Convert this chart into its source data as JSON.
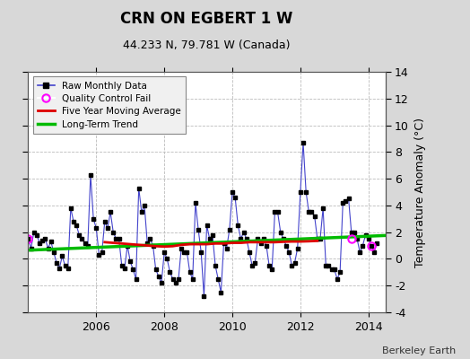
{
  "title": "CRN ON EGBERT 1 W",
  "subtitle": "44.233 N, 79.781 W (Canada)",
  "ylabel": "Temperature Anomaly (°C)",
  "credit": "Berkeley Earth",
  "ylim": [
    -4,
    14
  ],
  "yticks": [
    -4,
    -2,
    0,
    2,
    4,
    6,
    8,
    10,
    12,
    14
  ],
  "bg_color": "#d8d8d8",
  "plot_bg_color": "#ffffff",
  "raw_color": "#4444cc",
  "marker_color": "#000000",
  "qc_color": "#ff00ff",
  "moving_avg_color": "#dd0000",
  "trend_color": "#00bb00",
  "raw_data": {
    "x": [
      2004.0,
      2004.083,
      2004.167,
      2004.25,
      2004.333,
      2004.417,
      2004.5,
      2004.583,
      2004.667,
      2004.75,
      2004.833,
      2004.917,
      2005.0,
      2005.083,
      2005.167,
      2005.25,
      2005.333,
      2005.417,
      2005.5,
      2005.583,
      2005.667,
      2005.75,
      2005.833,
      2005.917,
      2006.0,
      2006.083,
      2006.167,
      2006.25,
      2006.333,
      2006.417,
      2006.5,
      2006.583,
      2006.667,
      2006.75,
      2006.833,
      2006.917,
      2007.0,
      2007.083,
      2007.167,
      2007.25,
      2007.333,
      2007.417,
      2007.5,
      2007.583,
      2007.667,
      2007.75,
      2007.833,
      2007.917,
      2008.0,
      2008.083,
      2008.167,
      2008.25,
      2008.333,
      2008.417,
      2008.5,
      2008.583,
      2008.667,
      2008.75,
      2008.833,
      2008.917,
      2009.0,
      2009.083,
      2009.167,
      2009.25,
      2009.333,
      2009.417,
      2009.5,
      2009.583,
      2009.667,
      2009.75,
      2009.833,
      2009.917,
      2010.0,
      2010.083,
      2010.167,
      2010.25,
      2010.333,
      2010.417,
      2010.5,
      2010.583,
      2010.667,
      2010.75,
      2010.833,
      2010.917,
      2011.0,
      2011.083,
      2011.167,
      2011.25,
      2011.333,
      2011.417,
      2011.5,
      2011.583,
      2011.667,
      2011.75,
      2011.833,
      2011.917,
      2012.0,
      2012.083,
      2012.167,
      2012.25,
      2012.333,
      2012.417,
      2012.5,
      2012.583,
      2012.667,
      2012.75,
      2012.833,
      2012.917,
      2013.0,
      2013.083,
      2013.167,
      2013.25,
      2013.333,
      2013.417,
      2013.5,
      2013.583,
      2013.667,
      2013.75,
      2013.833,
      2013.917,
      2014.0,
      2014.083,
      2014.167,
      2014.25
    ],
    "y": [
      1.5,
      0.8,
      2.0,
      1.8,
      1.2,
      1.4,
      1.5,
      0.8,
      1.3,
      0.5,
      -0.3,
      -0.7,
      0.2,
      -0.5,
      -0.7,
      3.8,
      2.8,
      2.5,
      1.8,
      1.5,
      1.2,
      1.0,
      6.3,
      3.0,
      2.3,
      0.3,
      0.5,
      2.8,
      2.3,
      3.5,
      2.0,
      1.5,
      1.5,
      -0.5,
      -0.7,
      1.0,
      -0.2,
      -0.8,
      -1.5,
      5.3,
      3.5,
      4.0,
      1.2,
      1.5,
      1.0,
      -0.8,
      -1.3,
      -1.8,
      0.5,
      0.0,
      -1.0,
      -1.5,
      -1.8,
      -1.5,
      0.8,
      0.5,
      0.5,
      -1.0,
      -1.5,
      4.2,
      2.2,
      0.5,
      -2.8,
      2.5,
      1.5,
      1.8,
      -0.5,
      -1.5,
      -2.5,
      1.2,
      0.8,
      2.2,
      5.0,
      4.6,
      2.5,
      1.5,
      2.0,
      1.5,
      0.5,
      -0.5,
      -0.3,
      1.5,
      1.2,
      1.5,
      1.0,
      -0.5,
      -0.8,
      3.5,
      3.5,
      2.0,
      1.5,
      1.0,
      0.5,
      -0.5,
      -0.3,
      0.8,
      5.0,
      8.7,
      5.0,
      3.5,
      3.5,
      3.2,
      1.5,
      1.5,
      3.8,
      -0.5,
      -0.5,
      -0.8,
      -0.8,
      -1.5,
      -1.0,
      4.2,
      4.3,
      4.5,
      2.0,
      2.0,
      1.5,
      0.5,
      1.0,
      1.8,
      1.5,
      1.0,
      0.5,
      1.2
    ]
  },
  "qc_fail_points": [
    [
      2004.0,
      1.5
    ],
    [
      2013.5,
      1.5
    ],
    [
      2014.083,
      1.0
    ]
  ],
  "moving_avg": {
    "x": [
      2006.25,
      2006.5,
      2006.75,
      2007.0,
      2007.25,
      2007.5,
      2007.75,
      2008.0,
      2008.25,
      2008.5,
      2008.75,
      2009.0,
      2009.25,
      2009.5,
      2009.75,
      2010.0,
      2010.25,
      2010.5,
      2010.75,
      2011.0,
      2011.25,
      2011.5,
      2011.75,
      2012.0,
      2012.25,
      2012.5
    ],
    "y": [
      1.25,
      1.2,
      1.15,
      1.1,
      1.05,
      1.0,
      0.95,
      0.92,
      0.95,
      1.05,
      1.1,
      1.1,
      1.1,
      1.15,
      1.15,
      1.2,
      1.2,
      1.25,
      1.25,
      1.25,
      1.25,
      1.28,
      1.3,
      1.3,
      1.32,
      1.35
    ]
  },
  "trend": {
    "x": [
      2004.0,
      2014.5
    ],
    "y": [
      0.65,
      1.75
    ]
  },
  "xmin": 2004.0,
  "xmax": 2014.5,
  "xtick_positions": [
    2006,
    2008,
    2010,
    2012,
    2014
  ]
}
